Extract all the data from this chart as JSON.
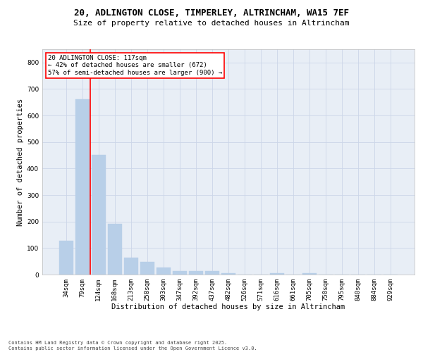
{
  "title_line1": "20, ADLINGTON CLOSE, TIMPERLEY, ALTRINCHAM, WA15 7EF",
  "title_line2": "Size of property relative to detached houses in Altrincham",
  "xlabel": "Distribution of detached houses by size in Altrincham",
  "ylabel": "Number of detached properties",
  "categories": [
    "34sqm",
    "79sqm",
    "124sqm",
    "168sqm",
    "213sqm",
    "258sqm",
    "303sqm",
    "347sqm",
    "392sqm",
    "437sqm",
    "482sqm",
    "526sqm",
    "571sqm",
    "616sqm",
    "661sqm",
    "705sqm",
    "750sqm",
    "795sqm",
    "840sqm",
    "884sqm",
    "929sqm"
  ],
  "values": [
    128,
    662,
    452,
    190,
    65,
    48,
    26,
    12,
    13,
    13,
    6,
    0,
    0,
    6,
    0,
    6,
    0,
    0,
    0,
    0,
    0
  ],
  "bar_color": "#b8cfe8",
  "bar_edge_color": "#b8cfe8",
  "vertical_line_x": 1.5,
  "vertical_line_color": "red",
  "annotation_text": "20 ADLINGTON CLOSE: 117sqm\n← 42% of detached houses are smaller (672)\n57% of semi-detached houses are larger (900) →",
  "annotation_box_color": "white",
  "annotation_box_edgecolor": "red",
  "ylim": [
    0,
    850
  ],
  "yticks": [
    0,
    100,
    200,
    300,
    400,
    500,
    600,
    700,
    800
  ],
  "grid_color": "#ccd6e8",
  "background_color": "#e8eef6",
  "footer_line1": "Contains HM Land Registry data © Crown copyright and database right 2025.",
  "footer_line2": "Contains public sector information licensed under the Open Government Licence v3.0.",
  "title_fontsize": 9,
  "subtitle_fontsize": 8,
  "axis_label_fontsize": 7.5,
  "tick_fontsize": 6.5,
  "annotation_fontsize": 6.5,
  "footer_fontsize": 5
}
